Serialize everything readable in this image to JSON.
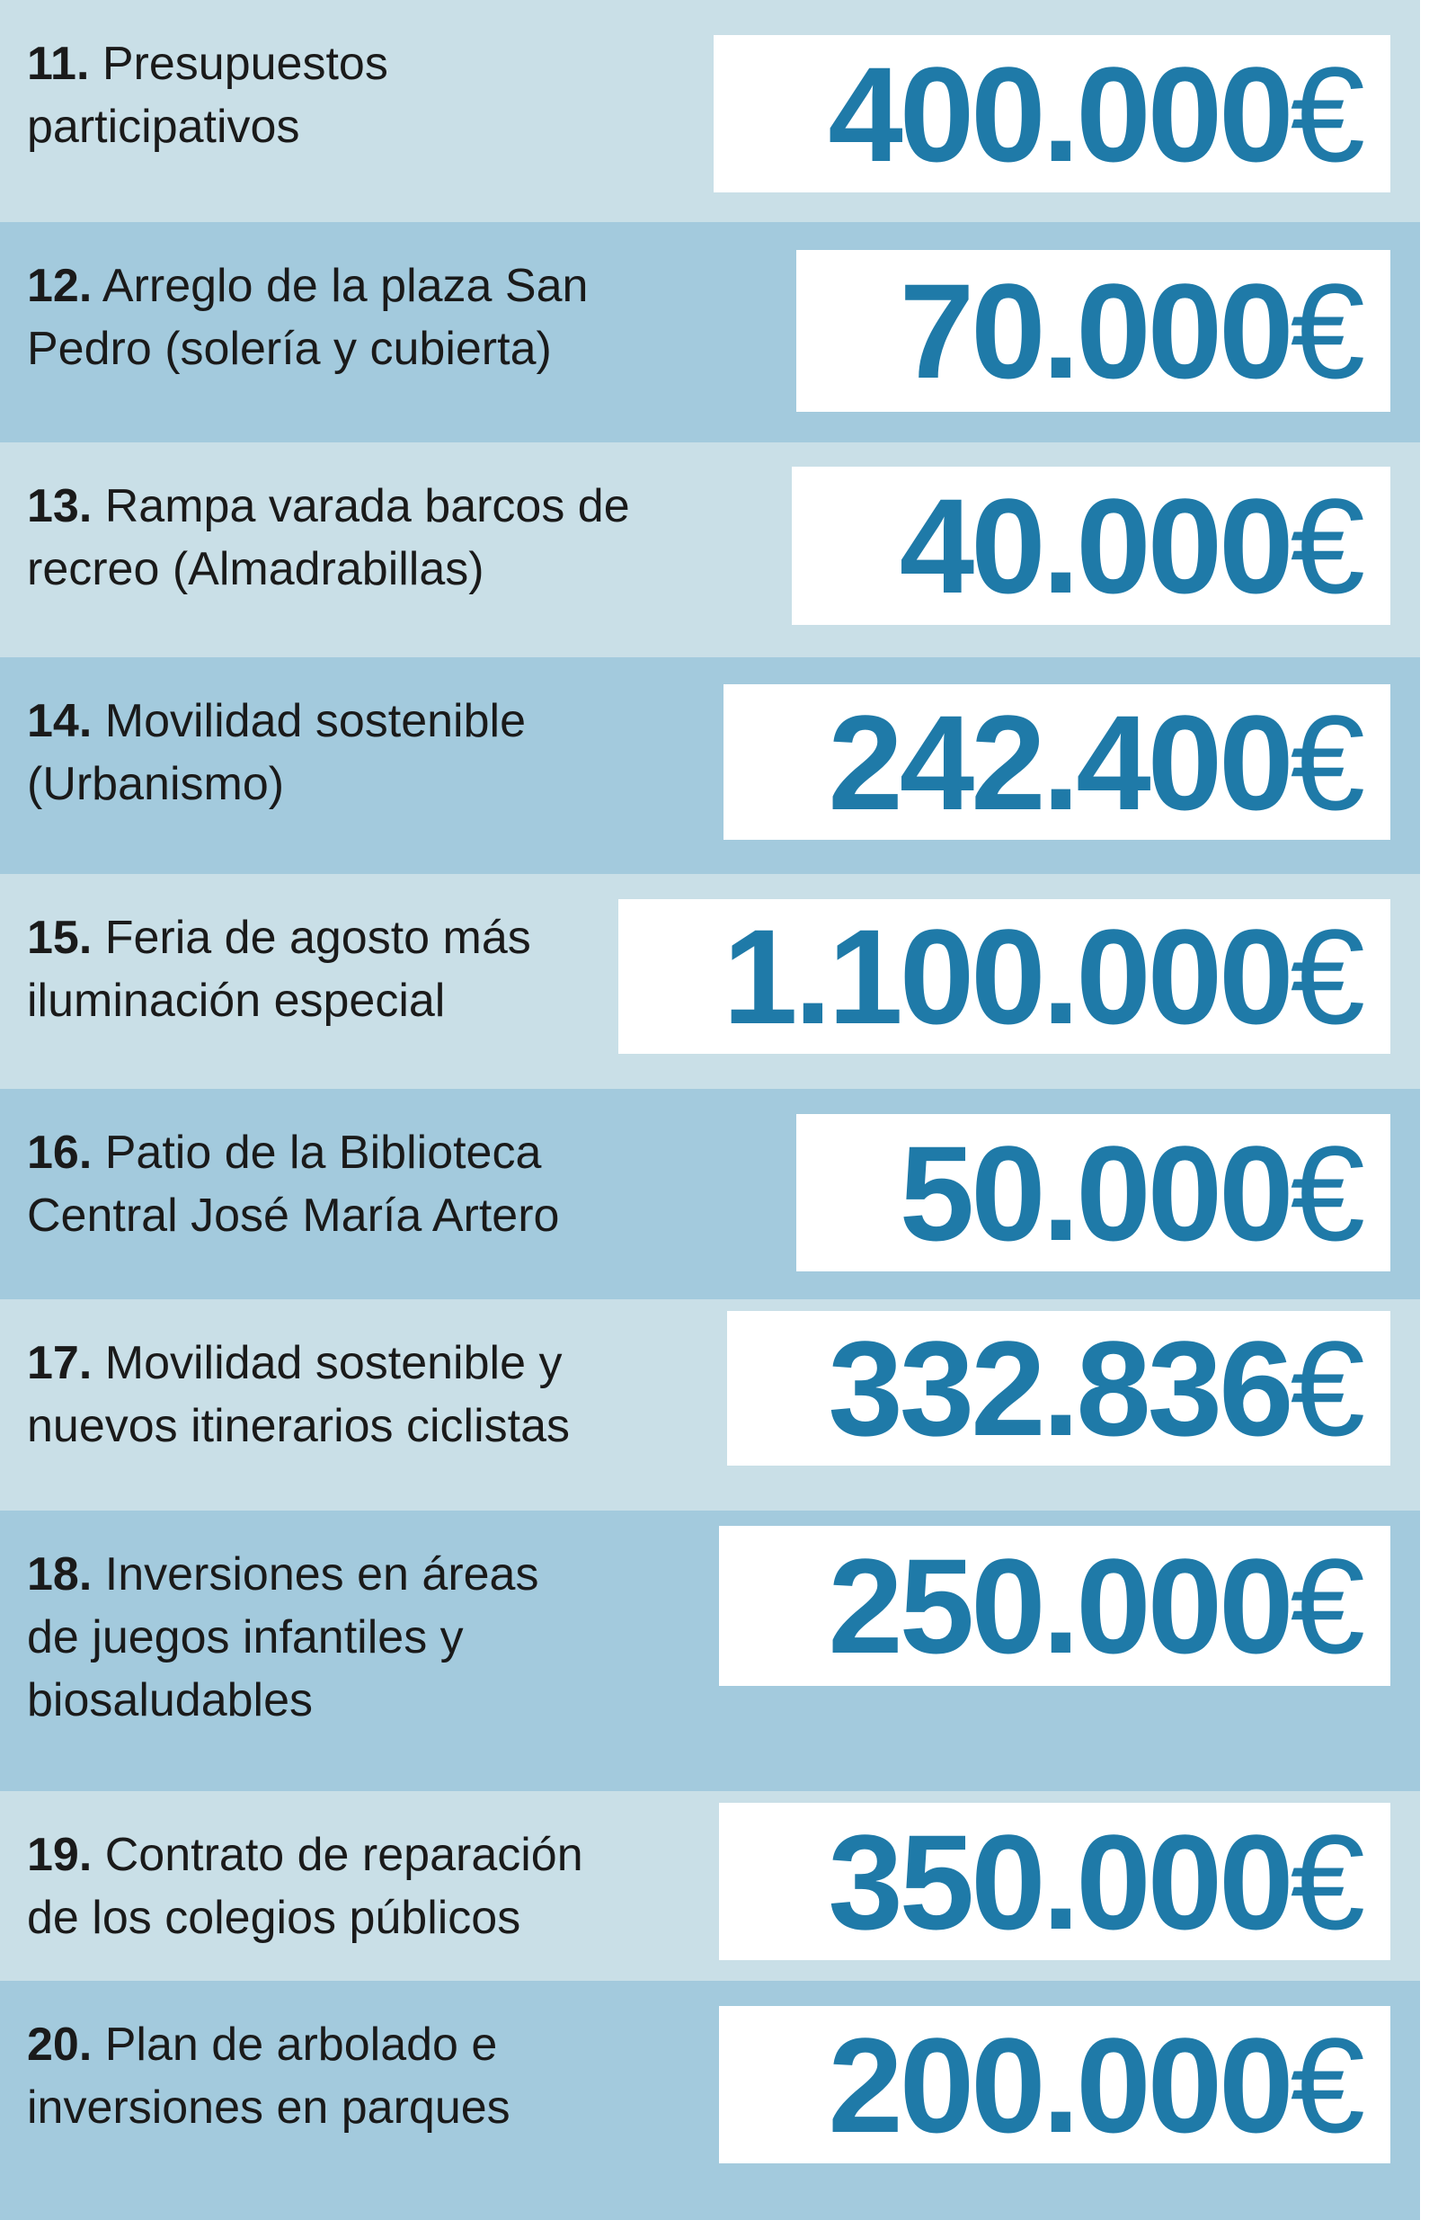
{
  "colors": {
    "row_light": "#c9dfe7",
    "row_dark": "#a3cadd",
    "amount": "#1f7aa8",
    "box": "#ffffff"
  },
  "items": [
    {
      "number": "11.",
      "lines": [
        "Presupuestos",
        "participativos"
      ],
      "amount": "400.000",
      "currency": "€"
    },
    {
      "number": "12.",
      "lines": [
        "Arreglo de la plaza San",
        "Pedro (solería y cubierta)"
      ],
      "amount": "70.000",
      "currency": "€"
    },
    {
      "number": "13.",
      "lines": [
        "Rampa varada barcos de",
        "recreo (Almadrabillas)"
      ],
      "amount": "40.000",
      "currency": "€"
    },
    {
      "number": "14.",
      "lines": [
        "Movilidad sostenible",
        "(Urbanismo)"
      ],
      "amount": "242.400",
      "currency": "€"
    },
    {
      "number": "15.",
      "lines": [
        "Feria de agosto más",
        "iluminación especial"
      ],
      "amount": "1.100.000",
      "currency": "€"
    },
    {
      "number": "16.",
      "lines": [
        "Patio de la Biblioteca",
        "Central José María Artero"
      ],
      "amount": "50.000",
      "currency": "€"
    },
    {
      "number": "17.",
      "lines": [
        "Movilidad sostenible y",
        "nuevos itinerarios ciclistas"
      ],
      "amount": "332.836",
      "currency": "€"
    },
    {
      "number": "18.",
      "lines": [
        "Inversiones en áreas",
        "de juegos infantiles y",
        "biosaludables"
      ],
      "amount": "250.000",
      "currency": "€"
    },
    {
      "number": "19.",
      "lines": [
        "Contrato de reparación",
        "de los colegios públicos"
      ],
      "amount": "350.000",
      "currency": "€"
    },
    {
      "number": "20.",
      "lines": [
        "Plan de arbolado e",
        "inversiones en parques"
      ],
      "amount": "200.000",
      "currency": "€"
    }
  ]
}
